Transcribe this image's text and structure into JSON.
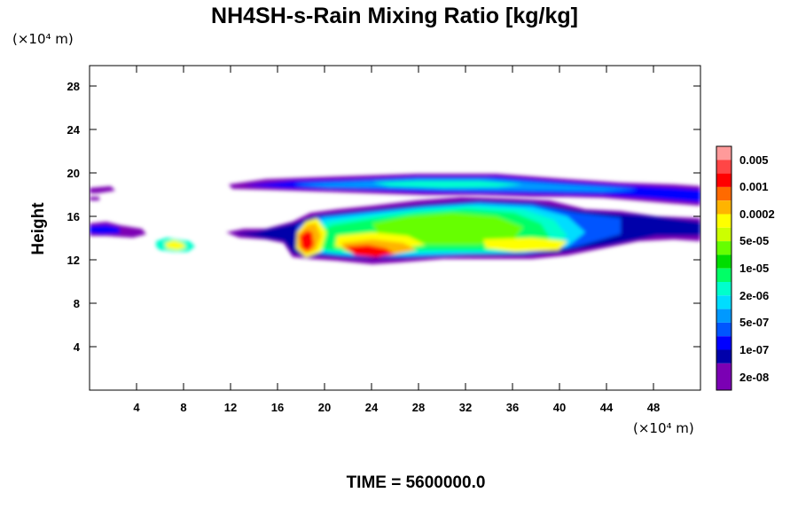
{
  "chart_data": {
    "type": "heatmap",
    "title": "NH4SH-s-Rain Mixing Ratio [kg/kg]",
    "xlabel": "",
    "ylabel": "Height",
    "x_unit": "(×10⁴ m)",
    "y_unit": "(×10⁴ m)",
    "xlim": [
      0,
      52
    ],
    "ylim": [
      0,
      30
    ],
    "x_ticks": [
      4,
      8,
      12,
      16,
      20,
      24,
      28,
      32,
      36,
      40,
      44,
      48
    ],
    "y_ticks": [
      4,
      8,
      12,
      16,
      20,
      24,
      28
    ],
    "grid": false,
    "colorbar": {
      "position": "right",
      "labels": [
        "0.005",
        "0.001",
        "0.0002",
        "5e-05",
        "1e-05",
        "2e-06",
        "5e-07",
        "1e-07",
        "2e-08"
      ],
      "colors": [
        "#ff9a9a",
        "#ff4646",
        "#ff0000",
        "#ff6a00",
        "#ffb400",
        "#ffff00",
        "#ccff00",
        "#66ff00",
        "#00dd00",
        "#00ff66",
        "#00ffcc",
        "#00ddff",
        "#0099ff",
        "#0055ff",
        "#0000ff",
        "#0000aa",
        "#7b00b4"
      ]
    },
    "regions": [
      {
        "name": "upper anvil layer",
        "x": [
          12,
          52
        ],
        "y": [
          17,
          19.5
        ],
        "max_level": "1e-05"
      },
      {
        "name": "main convective layer",
        "x": [
          12.5,
          52
        ],
        "y": [
          12,
          17
        ],
        "max_level": "0.005"
      },
      {
        "name": "left layer",
        "x": [
          0,
          5
        ],
        "y": [
          14,
          15.5
        ],
        "max_level": "1e-07"
      },
      {
        "name": "left thin layer",
        "x": [
          0,
          2.3
        ],
        "y": [
          17.5,
          18.5
        ],
        "max_level": "2e-08"
      },
      {
        "name": "isolated cell",
        "x": [
          5.7,
          9
        ],
        "y": [
          12.8,
          13.8
        ],
        "max_level": "0.0002"
      }
    ]
  },
  "footer": {
    "time_label": "TIME = 5600000.0"
  }
}
